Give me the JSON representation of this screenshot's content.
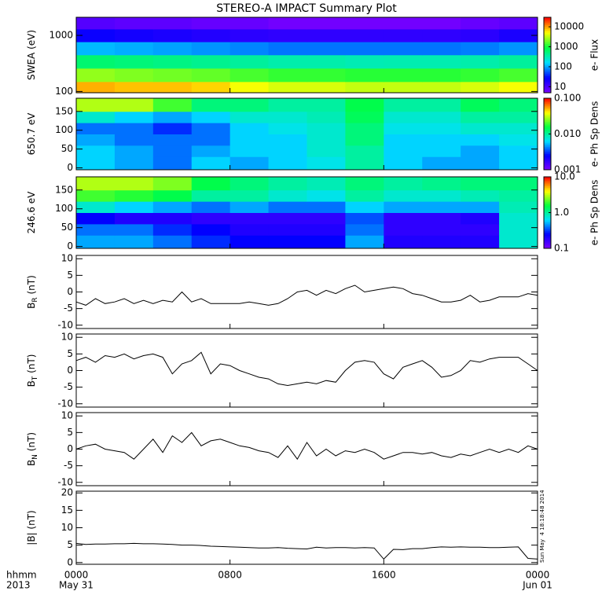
{
  "chart_data": [
    {
      "type": "heatmap",
      "title": "STEREO-A IMPACT Summary Plot",
      "ylabel": "SWEA (eV)",
      "ylog": true,
      "ylim": [
        95,
        2100
      ],
      "yticks": [
        100,
        1000
      ],
      "x_edges": [
        0,
        2,
        4,
        6,
        8,
        10,
        12,
        14,
        16,
        18,
        20,
        22,
        24
      ],
      "y_edges": [
        95,
        150,
        260,
        450,
        770,
        1300,
        2100
      ],
      "z": [
        [
          9000,
          8000,
          8000,
          7000,
          5000,
          4000,
          4000,
          3500,
          3500,
          3500,
          4000,
          5000
        ],
        [
          2500,
          2200,
          2000,
          1800,
          1500,
          1300,
          1300,
          1200,
          1200,
          1200,
          1300,
          1500
        ],
        [
          600,
          550,
          500,
          450,
          400,
          350,
          350,
          320,
          330,
          330,
          350,
          400
        ],
        [
          120,
          110,
          100,
          90,
          80,
          70,
          70,
          70,
          70,
          70,
          75,
          90
        ],
        [
          25,
          22,
          20,
          18,
          16,
          15,
          15,
          15,
          15,
          15,
          16,
          20
        ],
        [
          9,
          8,
          8,
          7,
          7,
          6,
          6,
          6,
          6,
          6,
          7,
          8
        ]
      ],
      "zlog": true,
      "zlim": [
        5,
        30000
      ],
      "zticks": [
        10,
        100,
        1000,
        10000
      ],
      "zlabel": "e- Flux",
      "colormap": [
        "#7f00ff",
        "#0000ff",
        "#00e0ff",
        "#00ff40",
        "#ffff00",
        "#ff0000"
      ]
    },
    {
      "type": "heatmap",
      "ylabel": "650.7 eV",
      "ylim": [
        -5,
        185
      ],
      "yticks": [
        0,
        50,
        100,
        150
      ],
      "x_edges": [
        0,
        2,
        4,
        6,
        8,
        10,
        12,
        14,
        16,
        18,
        20,
        22,
        24
      ],
      "y_edges": [
        -5,
        30,
        60,
        90,
        120,
        150,
        185
      ],
      "z": [
        [
          0.006,
          0.005,
          0.004,
          0.006,
          0.005,
          0.006,
          0.007,
          0.01,
          0.006,
          0.005,
          0.005,
          0.006
        ],
        [
          0.006,
          0.005,
          0.004,
          0.005,
          0.006,
          0.006,
          0.008,
          0.01,
          0.006,
          0.006,
          0.005,
          0.006
        ],
        [
          0.005,
          0.004,
          0.004,
          0.004,
          0.006,
          0.006,
          0.008,
          0.012,
          0.006,
          0.006,
          0.006,
          0.007
        ],
        [
          0.004,
          0.004,
          0.003,
          0.004,
          0.006,
          0.007,
          0.008,
          0.012,
          0.007,
          0.007,
          0.008,
          0.008
        ],
        [
          0.008,
          0.006,
          0.005,
          0.006,
          0.008,
          0.008,
          0.009,
          0.014,
          0.008,
          0.008,
          0.01,
          0.01
        ],
        [
          0.03,
          0.03,
          0.02,
          0.012,
          0.012,
          0.01,
          0.01,
          0.015,
          0.01,
          0.01,
          0.014,
          0.012
        ]
      ],
      "zlog": true,
      "zlim": [
        0.001,
        0.1
      ],
      "zticks": [
        0.001,
        {
          "value": 0.01,
          "label": "0.010"
        },
        {
          "value": 0.1,
          "label": "0.100"
        }
      ],
      "zlabel": "e- Ph Sp Dens",
      "colormap": [
        "#7f00ff",
        "#0000ff",
        "#00e0ff",
        "#00ff40",
        "#ffff00",
        "#ff0000"
      ]
    },
    {
      "type": "heatmap",
      "ylabel": "246.6 eV",
      "ylim": [
        -5,
        185
      ],
      "yticks": [
        0,
        50,
        100,
        150
      ],
      "x_edges": [
        0,
        2,
        4,
        6,
        8,
        10,
        12,
        14,
        16,
        18,
        20,
        22,
        24
      ],
      "y_edges": [
        -5,
        30,
        60,
        90,
        120,
        150,
        185
      ],
      "z": [
        [
          0.5,
          0.5,
          0.4,
          0.3,
          0.25,
          0.25,
          0.25,
          0.5,
          0.2,
          0.2,
          0.2,
          0.8
        ],
        [
          0.4,
          0.4,
          0.3,
          0.25,
          0.2,
          0.2,
          0.2,
          0.4,
          0.18,
          0.18,
          0.18,
          0.8
        ],
        [
          0.25,
          0.2,
          0.2,
          0.18,
          0.18,
          0.18,
          0.18,
          0.35,
          0.18,
          0.18,
          0.2,
          0.8
        ],
        [
          0.8,
          0.6,
          0.5,
          0.4,
          0.5,
          0.4,
          0.4,
          0.6,
          0.5,
          0.5,
          0.5,
          0.9
        ],
        [
          2,
          1.8,
          1.5,
          1,
          1,
          0.8,
          0.7,
          1,
          0.8,
          0.8,
          0.9,
          1
        ],
        [
          3,
          3,
          2.5,
          1.5,
          1.2,
          1,
          0.9,
          1.2,
          1,
          1.1,
          1.2,
          1.2
        ]
      ],
      "zlog": true,
      "zlim": [
        0.1,
        10
      ],
      "zticks": [
        0.1,
        {
          "value": 1,
          "label": "1.0"
        },
        {
          "value": 10,
          "label": "10.0"
        }
      ],
      "zlabel": "e- Ph Sp Dens",
      "colormap": [
        "#7f00ff",
        "#0000ff",
        "#00e0ff",
        "#00ff40",
        "#ffff00",
        "#ff0000"
      ]
    },
    {
      "type": "line",
      "ylabel": "B",
      "ylabel_sub": "R",
      "ylabel_unit": " (nT)",
      "ylim": [
        -11,
        11
      ],
      "yticks": [
        -10,
        -5,
        0,
        5,
        10
      ],
      "color": "#000000",
      "x": [
        0,
        0.5,
        1,
        1.5,
        2,
        2.5,
        3,
        3.5,
        4,
        4.5,
        5,
        5.5,
        6,
        6.5,
        7,
        7.5,
        8,
        8.5,
        9,
        9.5,
        10,
        10.5,
        11,
        11.5,
        12,
        12.5,
        13,
        13.5,
        14,
        14.5,
        15,
        15.5,
        16,
        16.5,
        17,
        17.5,
        18,
        18.5,
        19,
        19.5,
        20,
        20.5,
        21,
        21.5,
        22,
        22.5,
        23,
        23.5,
        24
      ],
      "values": [
        -3,
        -4,
        -2,
        -3.5,
        -3,
        -2,
        -3.5,
        -2.5,
        -3.5,
        -2.5,
        -3,
        0,
        -3,
        -2,
        -3.5,
        -3.5,
        -3.5,
        -3.5,
        -3,
        -3.5,
        -4,
        -3.5,
        -2,
        0,
        0.5,
        -1,
        0.5,
        -0.5,
        1,
        2,
        0,
        0.5,
        1,
        1.5,
        1,
        -0.5,
        -1,
        -2,
        -3,
        -3,
        -2.5,
        -1,
        -3,
        -2.5,
        -1.5,
        -1.5,
        -1.5,
        -0.5,
        -1
      ]
    },
    {
      "type": "line",
      "ylabel": "B",
      "ylabel_sub": "T",
      "ylabel_unit": " (nT)",
      "ylim": [
        -11,
        11
      ],
      "yticks": [
        -10,
        -5,
        0,
        5,
        10
      ],
      "color": "#000000",
      "x": [
        0,
        0.5,
        1,
        1.5,
        2,
        2.5,
        3,
        3.5,
        4,
        4.5,
        5,
        5.5,
        6,
        6.5,
        7,
        7.5,
        8,
        8.5,
        9,
        9.5,
        10,
        10.5,
        11,
        11.5,
        12,
        12.5,
        13,
        13.5,
        14,
        14.5,
        15,
        15.5,
        16,
        16.5,
        17,
        17.5,
        18,
        18.5,
        19,
        19.5,
        20,
        20.5,
        21,
        21.5,
        22,
        22.5,
        23,
        23.5,
        24
      ],
      "values": [
        3,
        4,
        2.5,
        4.5,
        4,
        5,
        3.5,
        4.5,
        5,
        4,
        -1,
        2,
        3,
        5.5,
        -1,
        2,
        1.5,
        0,
        -1,
        -2,
        -2.5,
        -4,
        -4.5,
        -4,
        -3.5,
        -4,
        -3,
        -3.5,
        0,
        2.5,
        3,
        2.5,
        -1,
        -2.5,
        1,
        2,
        3,
        1,
        -2,
        -1.5,
        0,
        3,
        2.5,
        3.5,
        4,
        4,
        4,
        2,
        0
      ]
    },
    {
      "type": "line",
      "ylabel": "B",
      "ylabel_sub": "N",
      "ylabel_unit": " (nT)",
      "ylim": [
        -11,
        11
      ],
      "yticks": [
        -10,
        -5,
        0,
        5,
        10
      ],
      "color": "#000000",
      "x": [
        0,
        0.5,
        1,
        1.5,
        2,
        2.5,
        3,
        3.5,
        4,
        4.5,
        5,
        5.5,
        6,
        6.5,
        7,
        7.5,
        8,
        8.5,
        9,
        9.5,
        10,
        10.5,
        11,
        11.5,
        12,
        12.5,
        13,
        13.5,
        14,
        14.5,
        15,
        15.5,
        16,
        16.5,
        17,
        17.5,
        18,
        18.5,
        19,
        19.5,
        20,
        20.5,
        21,
        21.5,
        22,
        22.5,
        23,
        23.5,
        24
      ],
      "values": [
        0,
        1,
        1.5,
        0,
        -0.5,
        -1,
        -3,
        0,
        3,
        -1,
        4,
        2,
        5,
        1,
        2.5,
        3,
        2,
        1,
        0.5,
        -0.5,
        -1,
        -2.5,
        1,
        -3,
        2,
        -2,
        0,
        -2,
        -0.5,
        -1,
        0,
        -1,
        -3,
        -2,
        -1,
        -1,
        -1.5,
        -1,
        -2,
        -2.5,
        -1.5,
        -2,
        -1,
        0,
        -1,
        0,
        -1,
        1,
        0
      ]
    },
    {
      "type": "line",
      "ylabel": "|B| (nT)",
      "ylim": [
        -0.5,
        20.5
      ],
      "yticks": [
        0,
        5,
        10,
        15,
        20
      ],
      "color": "#000000",
      "x": [
        0,
        0.5,
        1,
        1.5,
        2,
        2.5,
        3,
        3.5,
        4,
        4.5,
        5,
        5.5,
        6,
        6.5,
        7,
        7.5,
        8,
        8.5,
        9,
        9.5,
        10,
        10.5,
        11,
        11.5,
        12,
        12.5,
        13,
        13.5,
        14,
        14.5,
        15,
        15.5,
        16,
        16.5,
        17,
        17.5,
        18,
        18.5,
        19,
        19.5,
        20,
        20.5,
        21,
        21.5,
        22,
        22.5,
        23,
        23.5,
        24
      ],
      "values": [
        5.5,
        5.2,
        5.3,
        5.3,
        5.4,
        5.4,
        5.5,
        5.4,
        5.4,
        5.3,
        5.2,
        5.0,
        5.0,
        4.9,
        4.7,
        4.6,
        4.5,
        4.4,
        4.3,
        4.2,
        4.2,
        4.3,
        4.1,
        4.0,
        3.9,
        4.4,
        4.2,
        4.3,
        4.3,
        4.2,
        4.3,
        4.2,
        1.0,
        3.8,
        3.7,
        4.0,
        4.0,
        4.3,
        4.5,
        4.4,
        4.5,
        4.4,
        4.4,
        4.3,
        4.3,
        4.4,
        4.5,
        1.2,
        1.0
      ],
      "xlim": [
        0,
        24
      ],
      "xticks": [
        {
          "value": 0,
          "label": "0000"
        },
        {
          "value": 8,
          "label": "0800"
        },
        {
          "value": 16,
          "label": "1600"
        },
        {
          "value": 24,
          "label": "0000"
        }
      ],
      "xtick_dates": [
        "May 31",
        null,
        null,
        "Jun 01"
      ],
      "xlabel_lines": [
        "hhmm",
        "2013"
      ],
      "annotation": "Sun May  4 18:18:48 2014"
    }
  ]
}
